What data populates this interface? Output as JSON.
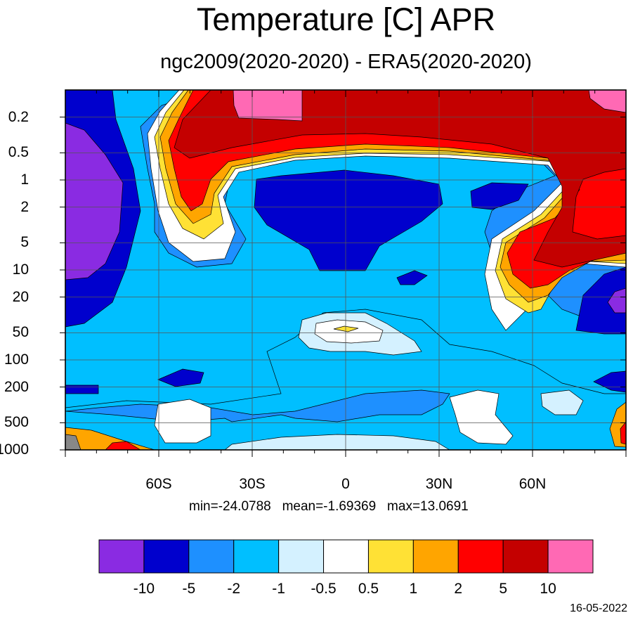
{
  "title": "Temperature [C] APR",
  "subtitle": "ngc2009(2020-2020) - ERA5(2020-2020)",
  "stats": {
    "min": "min=-24.0788",
    "mean": "mean=-1.69369",
    "max": "max=13.0691"
  },
  "date": "16-05-2022",
  "chart_data": {
    "type": "heatmap",
    "title": "Temperature [C] APR",
    "subtitle": "ngc2009(2020-2020) - ERA5(2020-2020)",
    "x_axis": {
      "ticks": [
        "60S",
        "30S",
        "0",
        "30N",
        "60N"
      ],
      "values": [
        -60,
        -30,
        0,
        30,
        60
      ],
      "range": [
        -90,
        90
      ]
    },
    "y_axis": {
      "scale": "log",
      "reversed": true,
      "ticks": [
        "0.2",
        "0.5",
        "1",
        "2",
        "5",
        "10",
        "20",
        "50",
        "100",
        "200",
        "500",
        "1000"
      ],
      "values": [
        0.2,
        0.5,
        1,
        2,
        5,
        10,
        20,
        50,
        100,
        200,
        500,
        1000
      ]
    },
    "grid": true,
    "colorbar": {
      "boundaries": [
        "-10",
        "-5",
        "-2",
        "-1",
        "-0.5",
        "0.5",
        "1",
        "2",
        "5",
        "10"
      ],
      "colors": [
        "#8a2be2",
        "#0000cd",
        "#1e90ff",
        "#00bfff",
        "#d4f1ff",
        "#ffffff",
        "#ffe135",
        "#ffa500",
        "#ff0000",
        "#c40000",
        "#ff69b4"
      ]
    },
    "min": -24.0788,
    "mean": -1.69369,
    "max": 13.0691
  }
}
